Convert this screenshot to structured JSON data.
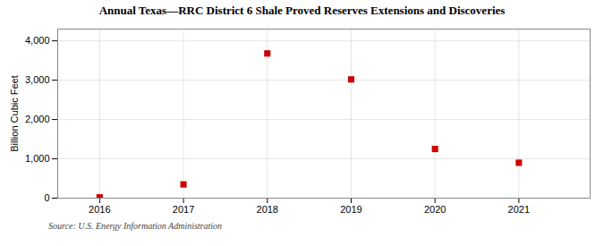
{
  "chart_data": {
    "type": "scatter",
    "title": "Annual Texas––RRC District 6 Shale Proved Reserves Extensions and Discoveries",
    "ylabel": "Billion Cubic Feet",
    "source": "Source: U.S. Energy Information Administration",
    "x": [
      2016,
      2017,
      2018,
      2019,
      2020,
      2021
    ],
    "values": [
      20,
      350,
      3680,
      3020,
      1250,
      900
    ],
    "xlim": [
      2015.5,
      2021.85
    ],
    "xticks": [
      2016,
      2017,
      2018,
      2019,
      2020,
      2021
    ],
    "ylim": [
      0,
      4300
    ],
    "yticks": [
      0,
      {
        "value": 1000,
        "label": "1,000"
      },
      {
        "value": 2000,
        "label": "2,000"
      },
      {
        "value": 3000,
        "label": "3,000"
      },
      {
        "value": 4000,
        "label": "4,000"
      }
    ],
    "color": "#cc0000",
    "marker": "square",
    "grid": true
  }
}
